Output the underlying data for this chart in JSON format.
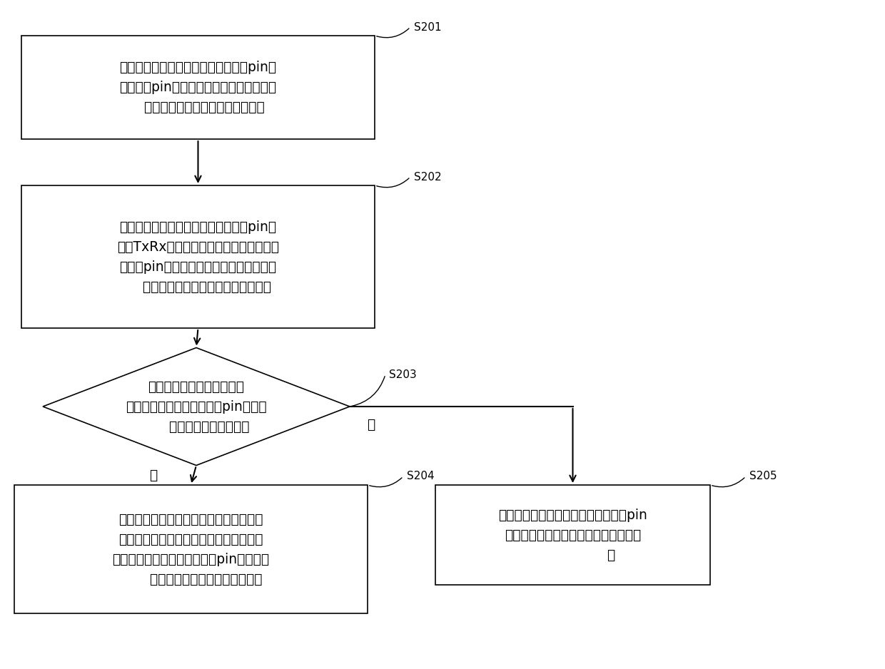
{
  "bg_color": "#ffffff",
  "box_edge_color": "#000000",
  "box_fill_color": "#ffffff",
  "arrow_color": "#000000",
  "text_color": "#000000",
  "font_size": 13.5,
  "step_font_size": 11,
  "s201_text": "充电盒与第一无线耳机通过第一供电pin和\n第二供电pin连接时，若需要与第一无线耳\n   机进行通讯，获取第一待发送数据",
  "s202_text": "控制第一单刀双掷开关导通第一供电pin与\n第一TxRx及电平转换电路的连接，通过第\n一供电pin向第一无线耳机依次发送预设开\n    始码、第一待发送数据和预设结束码",
  "s203_text": "判断时间阈值内是否接收到\n第一无线耳机通过第一供电pin发送的\n      返回数据或预设结束码",
  "s204_text": "接收返回数据和预设结束码或接收预设结\n束码，并在接收到预设结束码后，控制第\n一单刀双掷开关导通第一供电pin与供电电\n       路的连接，为第一无线耳机供电",
  "s205_text": "控制第一单刀双掷开关导通第一供电pin\n与供电电路的连接，为第一无线耳机供\n                  电",
  "yes_label": "是",
  "no_label": "否"
}
